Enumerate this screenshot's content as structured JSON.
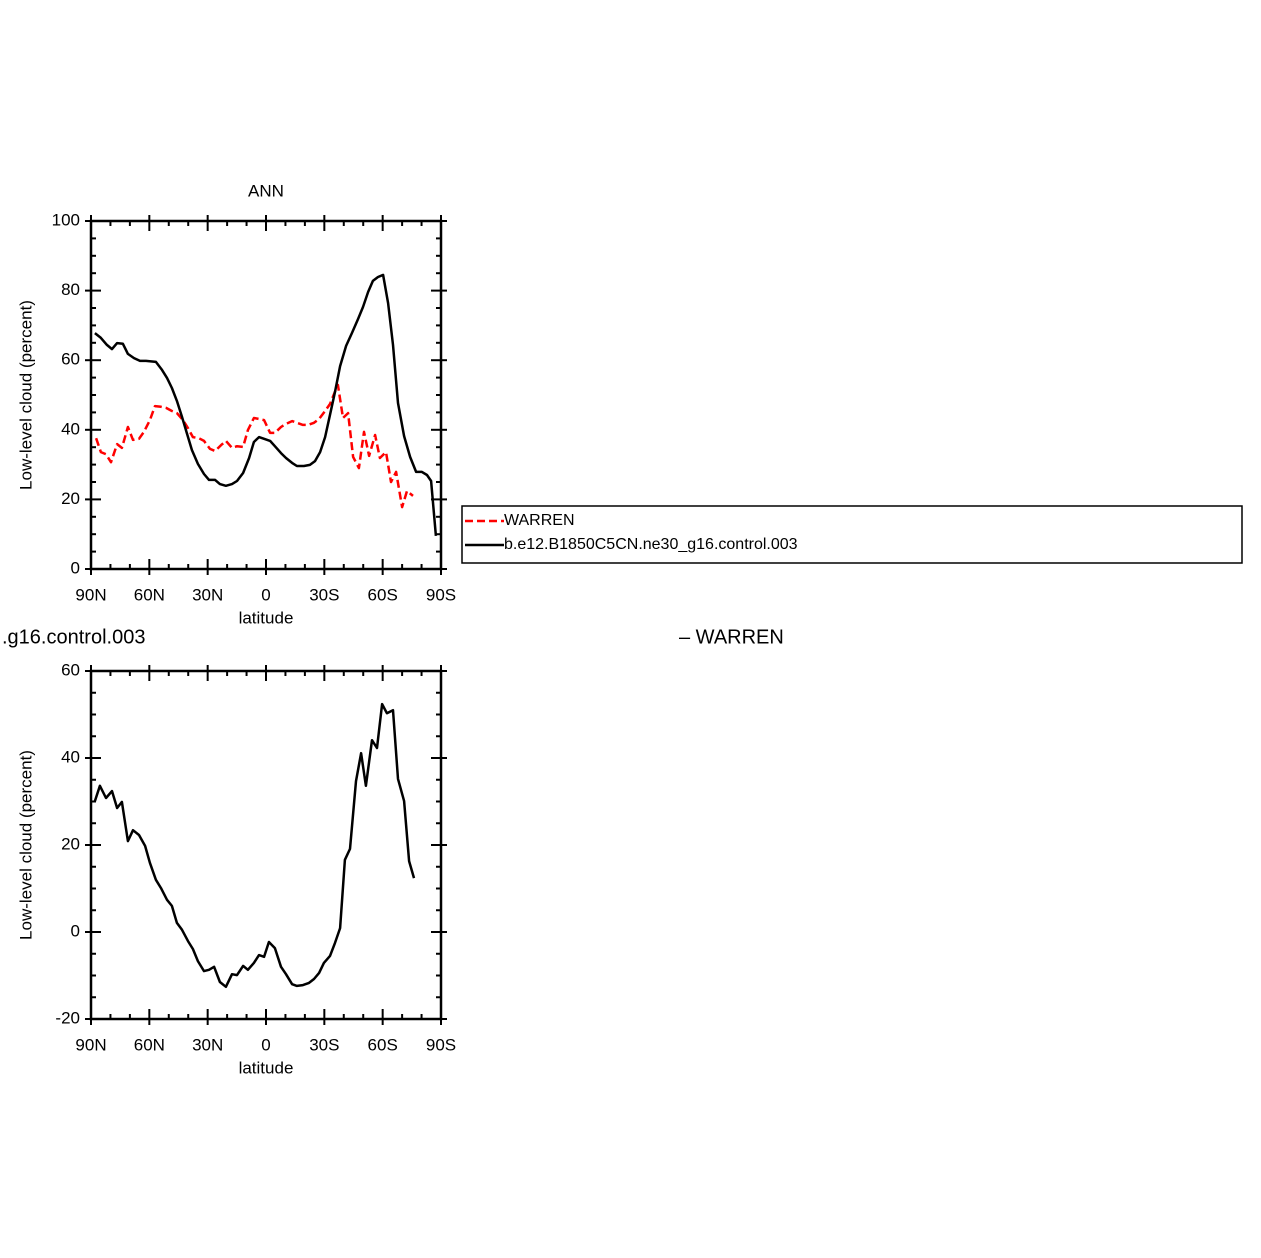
{
  "chart_data": [
    {
      "type": "line",
      "title": "ANN",
      "xlabel": "latitude",
      "ylabel": "Low-level cloud (percent)",
      "xlim": [
        90,
        -90
      ],
      "xticks": [
        {
          "value": 90,
          "label": "90N"
        },
        {
          "value": 60,
          "label": "60N"
        },
        {
          "value": 30,
          "label": "30N"
        },
        0,
        {
          "value": -30,
          "label": "30S"
        },
        {
          "value": -60,
          "label": "60S"
        },
        {
          "value": -90,
          "label": "90S"
        }
      ],
      "xminorticks": [
        80,
        70,
        50,
        40,
        20,
        10,
        -10,
        -20,
        -40,
        -50,
        -70,
        -80
      ],
      "ylim": [
        0,
        100
      ],
      "yticks": [
        0,
        20,
        40,
        60,
        80,
        100
      ],
      "yminorticks": [
        5,
        10,
        15,
        25,
        30,
        35,
        45,
        50,
        55,
        65,
        70,
        75,
        85,
        90,
        95
      ],
      "legend": "right",
      "series": [
        {
          "name": "WARREN",
          "color": "#ff0000",
          "dash": "dashed",
          "x": [
            87.4,
            84.9,
            82.3,
            79.7,
            76.6,
            74.1,
            71,
            68.4,
            65.3,
            62.8,
            59.7,
            57.1,
            54,
            51.4,
            48.4,
            45.8,
            42.7,
            40.1,
            37.6,
            34.5,
            31.9,
            28.8,
            26.2,
            23.1,
            20.6,
            17.5,
            14.9,
            11.8,
            9.3,
            6.2,
            3.6,
            1,
            -2.1,
            -4.6,
            -7.7,
            -10.3,
            -13.4,
            -15.9,
            -19,
            -21.6,
            -24.7,
            -27.3,
            -30.4,
            -32.9,
            -36,
            -37,
            -39.6,
            -42.2,
            -44.8,
            -47.8,
            -50.4,
            -53,
            -56.1,
            -58.6,
            -61.7,
            -64.3,
            -66.9,
            -70,
            -72.5,
            -75.6
          ],
          "values": [
            37.6,
            33.6,
            33,
            30.7,
            35.9,
            34.8,
            40.8,
            37.1,
            37.4,
            39.4,
            42.8,
            46.8,
            46.6,
            46.3,
            45.4,
            44.8,
            42.8,
            40.5,
            37.9,
            37.6,
            36.8,
            34.5,
            33.9,
            35.6,
            36.8,
            34.8,
            35.3,
            35.1,
            39.9,
            43.4,
            43.1,
            42.8,
            39.1,
            39.1,
            40.8,
            41.7,
            42.5,
            42,
            41.4,
            41.4,
            42,
            43.1,
            45.4,
            47.4,
            51.7,
            52.9,
            43.4,
            44.8,
            32.2,
            29,
            39.4,
            32.5,
            38.5,
            31.9,
            33.6,
            25,
            27.9,
            17.8,
            22.4,
            21
          ]
        },
        {
          "name": "b.e12.B1850C5CN.ne30_g16.control.003",
          "color": "#000000",
          "dash": "solid",
          "x": [
            88,
            84.9,
            81.8,
            79.2,
            76.6,
            73.6,
            71,
            67.9,
            64.8,
            61.7,
            56.6,
            53.5,
            50.9,
            48.4,
            45.8,
            43.2,
            40.6,
            38.1,
            35,
            31.9,
            29.3,
            26.2,
            23.7,
            20.6,
            17.5,
            14.9,
            11.8,
            8.7,
            6.2,
            3.6,
            1,
            -2.1,
            -4.6,
            -7.7,
            -10.3,
            -13.4,
            -15.9,
            -19.5,
            -22.6,
            -25.2,
            -27.8,
            -30.4,
            -32.9,
            -35.5,
            -38.1,
            -41.2,
            -44.2,
            -47.3,
            -49.9,
            -52.5,
            -55,
            -57.6,
            -60.2,
            -62.8,
            -65.3,
            -67.9,
            -71,
            -74.1,
            -77.2,
            -80.2,
            -82.8,
            -84.9,
            -87.4
          ],
          "values": [
            67.8,
            66.4,
            64.4,
            63.2,
            64.9,
            64.7,
            61.8,
            60.6,
            59.8,
            59.8,
            59.5,
            57.2,
            54.9,
            52,
            48.3,
            43.7,
            38.8,
            34.2,
            30.2,
            27.3,
            25.6,
            25.6,
            24.4,
            23.9,
            24.4,
            25.3,
            27.6,
            31.9,
            36.5,
            37.9,
            37.4,
            36.8,
            35.3,
            33.3,
            31.9,
            30.5,
            29.6,
            29.6,
            29.9,
            31,
            33.6,
            37.9,
            44.3,
            50.9,
            58.3,
            64.1,
            67.8,
            71.8,
            75.3,
            79.6,
            82.8,
            83.9,
            84.5,
            76.4,
            64.4,
            47.7,
            38.2,
            32.2,
            27.9,
            27.9,
            27,
            25.3,
            9.5
          ]
        }
      ]
    },
    {
      "type": "line",
      "title_left": ".g16.control.003",
      "title_right": "– WARREN",
      "xlabel": "latitude",
      "ylabel": "Low-level cloud (percent)",
      "xlim": [
        90,
        -90
      ],
      "xticks": [
        {
          "value": 90,
          "label": "90N"
        },
        {
          "value": 60,
          "label": "60N"
        },
        {
          "value": 30,
          "label": "30N"
        },
        0,
        {
          "value": -30,
          "label": "30S"
        },
        {
          "value": -60,
          "label": "60S"
        },
        {
          "value": -90,
          "label": "90S"
        }
      ],
      "xminorticks": [
        80,
        70,
        50,
        40,
        20,
        10,
        -10,
        -20,
        -40,
        -50,
        -70,
        -80
      ],
      "ylim": [
        -20,
        60
      ],
      "yticks": [
        -20,
        0,
        20,
        40,
        60
      ],
      "yminorticks": [
        -15,
        -10,
        -5,
        5,
        10,
        15,
        25,
        30,
        35,
        45,
        50,
        55
      ],
      "color": "#000000",
      "x": [
        88,
        85.4,
        82.3,
        79.2,
        76.6,
        74.1,
        71,
        68.4,
        65.3,
        62.2,
        59.7,
        56.6,
        54,
        50.9,
        48.4,
        45.8,
        43.2,
        40.1,
        37.6,
        35,
        31.9,
        29.3,
        26.7,
        23.7,
        20.6,
        17.5,
        14.9,
        11.8,
        9.3,
        6.2,
        3.6,
        1,
        -1.5,
        -4.6,
        -7.7,
        -10.3,
        -13.4,
        -15.9,
        -19,
        -22.1,
        -24.7,
        -27.3,
        -29.8,
        -32.9,
        -35.5,
        -38.1,
        -40.6,
        -43.2,
        -46.3,
        -48.9,
        -51.4,
        -54.5,
        -57.1,
        -59.7,
        -62.2,
        -65.3,
        -67.9,
        -71,
        -73.6,
        -76.1
      ],
      "values": [
        30.1,
        33.6,
        30.8,
        32.4,
        28.5,
        29.9,
        20.9,
        23.4,
        22.3,
        19.8,
        15.9,
        12,
        10.1,
        7.4,
        6,
        2.1,
        0.5,
        -2.1,
        -3.9,
        -6.7,
        -9,
        -8.7,
        -8,
        -11.5,
        -12.6,
        -9.7,
        -9.9,
        -7.8,
        -8.7,
        -7.1,
        -5.3,
        -5.7,
        -2.3,
        -3.7,
        -8,
        -9.7,
        -12,
        -12.4,
        -12.2,
        -11.7,
        -10.8,
        -9.4,
        -7.1,
        -5.5,
        -2.5,
        0.9,
        16.6,
        19.1,
        34.7,
        41.1,
        33.6,
        44.1,
        42.3,
        52.4,
        50.3,
        51,
        35.2,
        30.1,
        16.3,
        12.4
      ]
    }
  ]
}
